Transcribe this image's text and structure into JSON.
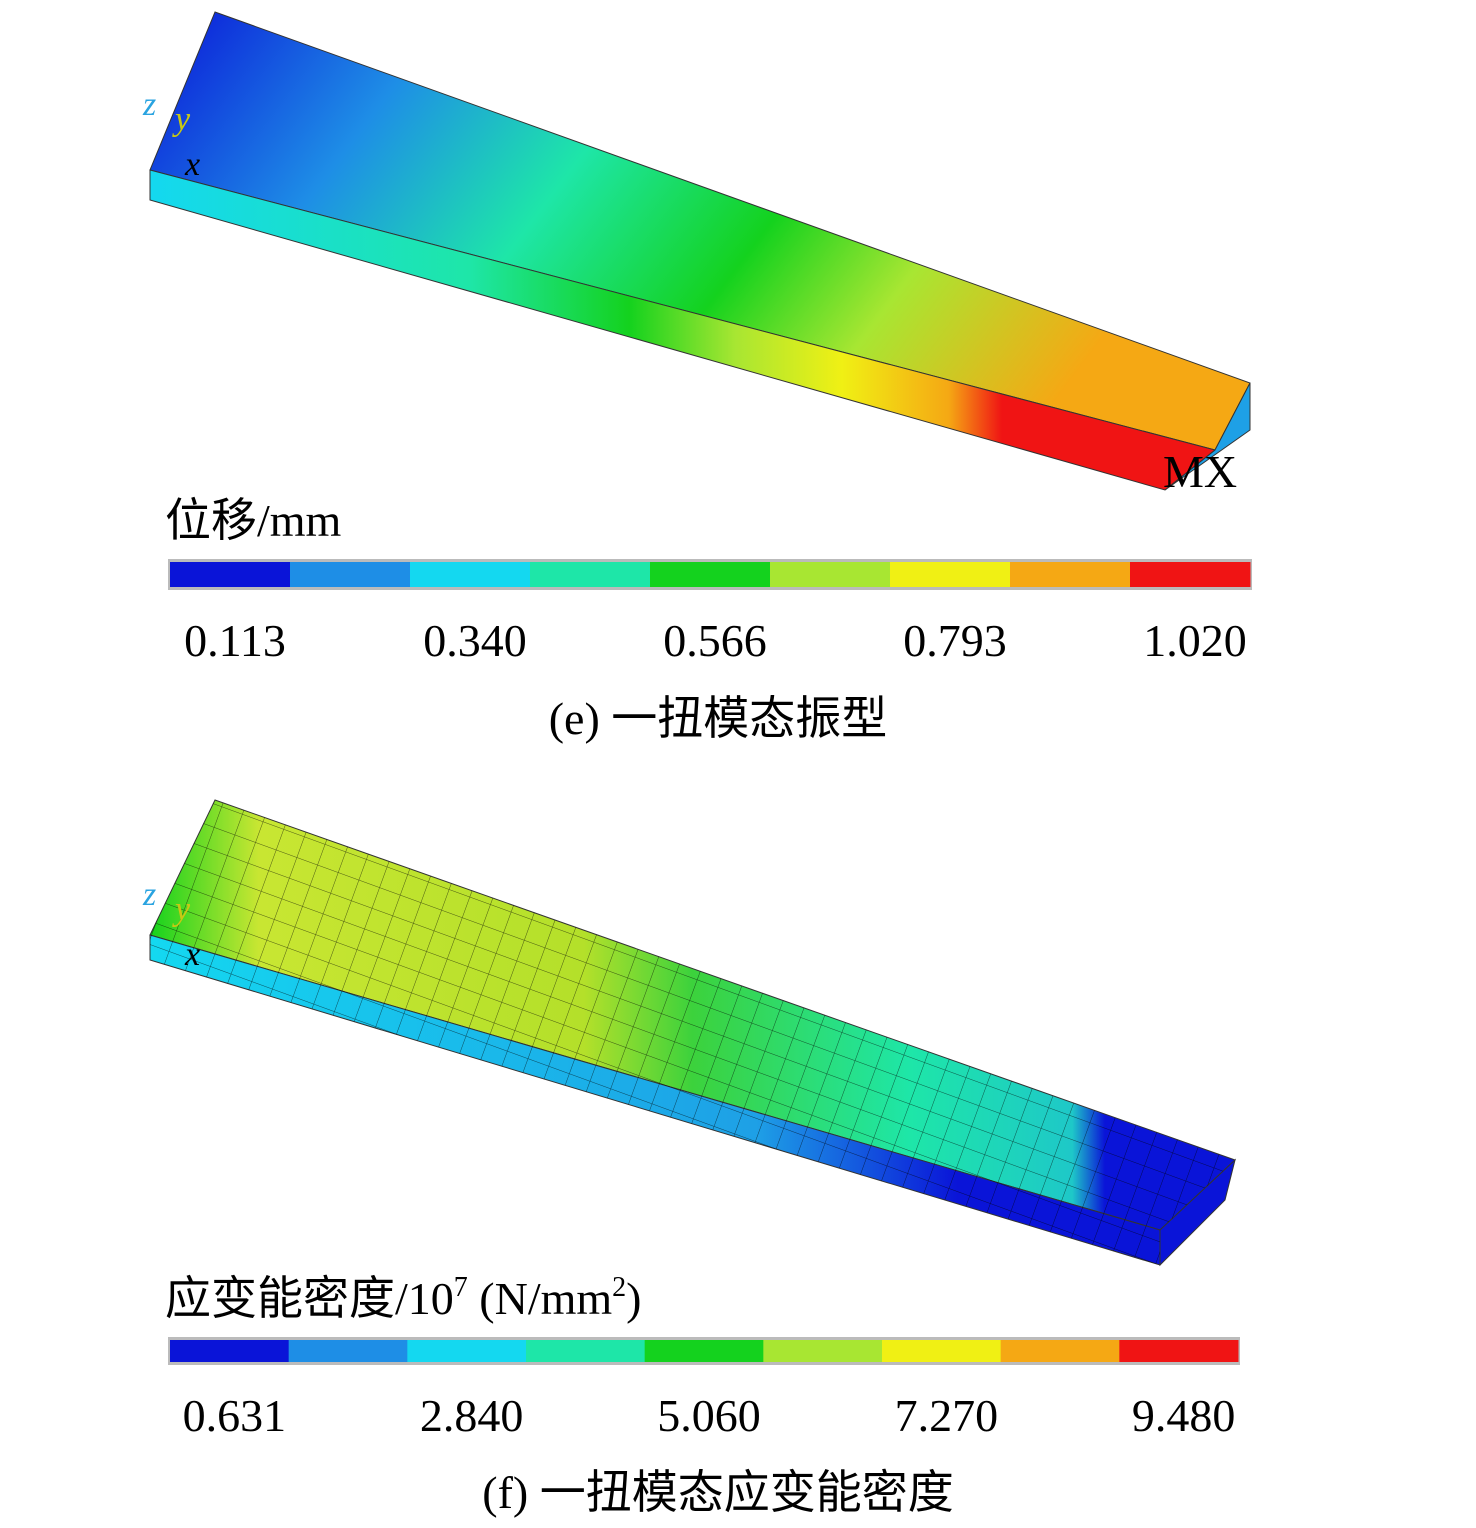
{
  "colorbar_colors": [
    "#0a14d8",
    "#1e8ee6",
    "#14d8f0",
    "#1ee6a8",
    "#14d21e",
    "#a8e632",
    "#f0f014",
    "#f5a814",
    "#f01414"
  ],
  "panels": [
    {
      "axes": {
        "z": "z",
        "y": "y",
        "x": "x"
      },
      "marker": "MX",
      "legend_title_parts": [
        "位移/mm"
      ],
      "legend_ticks": [
        "0.113",
        "0.340",
        "0.566",
        "0.793",
        "1.020"
      ],
      "caption": "(e) 一扭模态振型"
    },
    {
      "axes": {
        "z": "z",
        "y": "y",
        "x": "x"
      },
      "legend_title_parts": [
        "应变能密度/10",
        "7",
        " (N/mm",
        "2",
        ")"
      ],
      "legend_ticks": [
        "0.631",
        "2.840",
        "5.060",
        "7.270",
        "9.480"
      ],
      "caption": "(f) 一扭模态应变能密度"
    }
  ]
}
